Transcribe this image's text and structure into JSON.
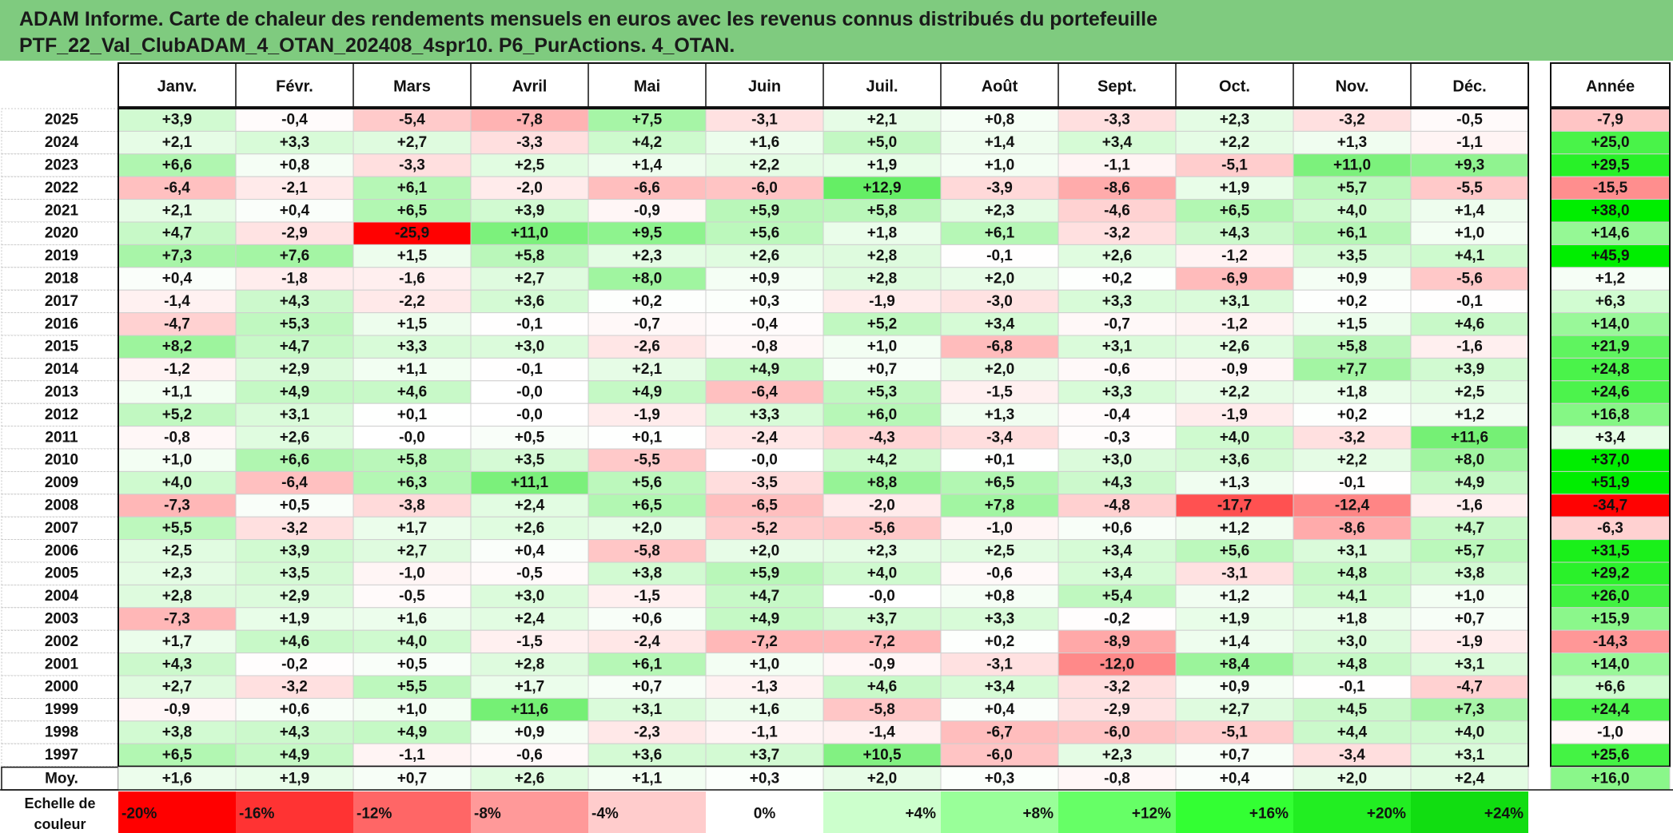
{
  "title_line1": "ADAM Informe. Carte de chaleur des rendements mensuels en euros avec les revenus connus distribués du portefeuille",
  "title_line2": "PTF_22_Val_ClubADAM_4_OTAN_202408_4spr10. P6_PurActions. 4_OTAN.",
  "colors": {
    "title_bg": "#7fcb7f",
    "negative_max": "#ff0000",
    "positive_max": "#00ee00",
    "neutral": "#ffffff"
  },
  "chart_data": {
    "type": "heatmap",
    "title": "ADAM Informe. Carte de chaleur des rendements mensuels en euros avec les revenus connus distribués du portefeuille PTF_22_Val_ClubADAM_4_OTAN_202408_4spr10. P6_PurActions. 4_OTAN.",
    "columns": [
      "Janv.",
      "Févr.",
      "Mars",
      "Avril",
      "Mai",
      "Juin",
      "Juil.",
      "Août",
      "Sept.",
      "Oct.",
      "Nov.",
      "Déc."
    ],
    "year_column_label": "Année",
    "rows": [
      {
        "year": "2025",
        "months": [
          "+3,9",
          "-0,4",
          "-5,4",
          "-7,8",
          "+7,5",
          "-3,1",
          "+2,1",
          "+0,8",
          "-3,3",
          "+2,3",
          "-3,2",
          "-0,5"
        ],
        "annual": "-7,9"
      },
      {
        "year": "2024",
        "months": [
          "+2,1",
          "+3,3",
          "+2,7",
          "-3,3",
          "+4,2",
          "+1,6",
          "+5,0",
          "+1,4",
          "+3,4",
          "+2,2",
          "+1,3",
          "-1,1"
        ],
        "annual": "+25,0"
      },
      {
        "year": "2023",
        "months": [
          "+6,6",
          "+0,8",
          "-3,3",
          "+2,5",
          "+1,4",
          "+2,2",
          "+1,9",
          "+1,0",
          "-1,1",
          "-5,1",
          "+11,0",
          "+9,3"
        ],
        "annual": "+29,5"
      },
      {
        "year": "2022",
        "months": [
          "-6,4",
          "-2,1",
          "+6,1",
          "-2,0",
          "-6,6",
          "-6,0",
          "+12,9",
          "-3,9",
          "-8,6",
          "+1,9",
          "+5,7",
          "-5,5"
        ],
        "annual": "-15,5"
      },
      {
        "year": "2021",
        "months": [
          "+2,1",
          "+0,4",
          "+6,5",
          "+3,9",
          "-0,9",
          "+5,9",
          "+5,8",
          "+2,3",
          "-4,6",
          "+6,5",
          "+4,0",
          "+1,4"
        ],
        "annual": "+38,0"
      },
      {
        "year": "2020",
        "months": [
          "+4,7",
          "-2,9",
          "-25,9",
          "+11,0",
          "+9,5",
          "+5,6",
          "+1,8",
          "+6,1",
          "-3,2",
          "+4,3",
          "+6,1",
          "+1,0"
        ],
        "annual": "+14,6"
      },
      {
        "year": "2019",
        "months": [
          "+7,3",
          "+7,6",
          "+1,5",
          "+5,8",
          "+2,3",
          "+2,6",
          "+2,8",
          "-0,1",
          "+2,6",
          "-1,2",
          "+3,5",
          "+4,1"
        ],
        "annual": "+45,9"
      },
      {
        "year": "2018",
        "months": [
          "+0,4",
          "-1,8",
          "-1,6",
          "+2,7",
          "+8,0",
          "+0,9",
          "+2,8",
          "+2,0",
          "+0,2",
          "-6,9",
          "+0,9",
          "-5,6"
        ],
        "annual": "+1,2"
      },
      {
        "year": "2017",
        "months": [
          "-1,4",
          "+4,3",
          "-2,2",
          "+3,6",
          "+0,2",
          "+0,3",
          "-1,9",
          "-3,0",
          "+3,3",
          "+3,1",
          "+0,2",
          "-0,1"
        ],
        "annual": "+6,3"
      },
      {
        "year": "2016",
        "months": [
          "-4,7",
          "+5,3",
          "+1,5",
          "-0,1",
          "-0,7",
          "-0,4",
          "+5,2",
          "+3,4",
          "-0,7",
          "-1,2",
          "+1,5",
          "+4,6"
        ],
        "annual": "+14,0"
      },
      {
        "year": "2015",
        "months": [
          "+8,2",
          "+4,7",
          "+3,3",
          "+3,0",
          "-2,6",
          "-0,8",
          "+1,0",
          "-6,8",
          "+3,1",
          "+2,6",
          "+5,8",
          "-1,6"
        ],
        "annual": "+21,9"
      },
      {
        "year": "2014",
        "months": [
          "-1,2",
          "+2,9",
          "+1,1",
          "-0,1",
          "+2,1",
          "+4,9",
          "+0,7",
          "+2,0",
          "-0,6",
          "-0,9",
          "+7,7",
          "+3,9"
        ],
        "annual": "+24,8"
      },
      {
        "year": "2013",
        "months": [
          "+1,1",
          "+4,9",
          "+4,6",
          "-0,0",
          "+4,9",
          "-6,4",
          "+5,3",
          "-1,5",
          "+3,3",
          "+2,2",
          "+1,8",
          "+2,5"
        ],
        "annual": "+24,6"
      },
      {
        "year": "2012",
        "months": [
          "+5,2",
          "+3,1",
          "+0,1",
          "-0,0",
          "-1,9",
          "+3,3",
          "+6,0",
          "+1,3",
          "-0,4",
          "-1,9",
          "+0,2",
          "+1,2"
        ],
        "annual": "+16,8"
      },
      {
        "year": "2011",
        "months": [
          "-0,8",
          "+2,6",
          "-0,0",
          "+0,5",
          "+0,1",
          "-2,4",
          "-4,3",
          "-3,4",
          "-0,3",
          "+4,0",
          "-3,2",
          "+11,6"
        ],
        "annual": "+3,4"
      },
      {
        "year": "2010",
        "months": [
          "+1,0",
          "+6,6",
          "+5,8",
          "+3,5",
          "-5,5",
          "-0,0",
          "+4,2",
          "+0,1",
          "+3,0",
          "+3,6",
          "+2,2",
          "+8,0"
        ],
        "annual": "+37,0"
      },
      {
        "year": "2009",
        "months": [
          "+4,0",
          "-6,4",
          "+6,3",
          "+11,1",
          "+5,6",
          "-3,5",
          "+8,8",
          "+6,5",
          "+4,3",
          "+1,3",
          "-0,1",
          "+4,9"
        ],
        "annual": "+51,9"
      },
      {
        "year": "2008",
        "months": [
          "-7,3",
          "+0,5",
          "-3,8",
          "+2,4",
          "+6,5",
          "-6,5",
          "-2,0",
          "+7,8",
          "-4,8",
          "-17,7",
          "-12,4",
          "-1,6"
        ],
        "annual": "-34,7"
      },
      {
        "year": "2007",
        "months": [
          "+5,5",
          "-3,2",
          "+1,7",
          "+2,6",
          "+2,0",
          "-5,2",
          "-5,6",
          "-1,0",
          "+0,6",
          "+1,2",
          "-8,6",
          "+4,7"
        ],
        "annual": "-6,3"
      },
      {
        "year": "2006",
        "months": [
          "+2,5",
          "+3,9",
          "+2,7",
          "+0,4",
          "-5,8",
          "+2,0",
          "+2,3",
          "+2,5",
          "+3,4",
          "+5,6",
          "+3,1",
          "+5,7"
        ],
        "annual": "+31,5"
      },
      {
        "year": "2005",
        "months": [
          "+2,3",
          "+3,5",
          "-1,0",
          "-0,5",
          "+3,8",
          "+5,9",
          "+4,0",
          "-0,6",
          "+3,4",
          "-3,1",
          "+4,8",
          "+3,8"
        ],
        "annual": "+29,2"
      },
      {
        "year": "2004",
        "months": [
          "+2,8",
          "+2,9",
          "-0,5",
          "+3,0",
          "-1,5",
          "+4,7",
          "-0,0",
          "+0,8",
          "+5,4",
          "+1,2",
          "+4,1",
          "+1,0"
        ],
        "annual": "+26,0"
      },
      {
        "year": "2003",
        "months": [
          "-7,3",
          "+1,9",
          "+1,6",
          "+2,4",
          "+0,6",
          "+4,9",
          "+3,7",
          "+3,3",
          "-0,2",
          "+1,9",
          "+1,8",
          "+0,7"
        ],
        "annual": "+15,9"
      },
      {
        "year": "2002",
        "months": [
          "+1,7",
          "+4,6",
          "+4,0",
          "-1,5",
          "-2,4",
          "-7,2",
          "-7,2",
          "+0,2",
          "-8,9",
          "+1,4",
          "+3,0",
          "-1,9"
        ],
        "annual": "-14,3"
      },
      {
        "year": "2001",
        "months": [
          "+4,3",
          "-0,2",
          "+0,5",
          "+2,8",
          "+6,1",
          "+1,0",
          "-0,9",
          "-3,1",
          "-12,0",
          "+8,4",
          "+4,8",
          "+3,1"
        ],
        "annual": "+14,0"
      },
      {
        "year": "2000",
        "months": [
          "+2,7",
          "-3,2",
          "+5,5",
          "+1,7",
          "+0,7",
          "-1,3",
          "+4,6",
          "+3,4",
          "-3,2",
          "+0,9",
          "-0,1",
          "-4,7"
        ],
        "annual": "+6,6"
      },
      {
        "year": "1999",
        "months": [
          "-0,9",
          "+0,6",
          "+1,0",
          "+11,6",
          "+3,1",
          "+1,6",
          "-5,8",
          "+0,4",
          "-2,9",
          "+2,7",
          "+4,5",
          "+7,3"
        ],
        "annual": "+24,4"
      },
      {
        "year": "1998",
        "months": [
          "+3,8",
          "+4,3",
          "+4,9",
          "+0,9",
          "-2,3",
          "-1,1",
          "-1,4",
          "-6,7",
          "-6,0",
          "-5,1",
          "+4,4",
          "+4,0"
        ],
        "annual": "-1,0"
      },
      {
        "year": "1997",
        "months": [
          "+6,5",
          "+4,9",
          "-1,1",
          "-0,6",
          "+3,6",
          "+3,7",
          "+10,5",
          "-6,0",
          "+2,3",
          "+0,7",
          "-3,4",
          "+3,1"
        ],
        "annual": "+25,6"
      }
    ],
    "average_row": {
      "label": "Moy.",
      "months": [
        "+1,6",
        "+1,9",
        "+0,7",
        "+2,6",
        "+1,1",
        "+0,3",
        "+2,0",
        "+0,3",
        "-0,8",
        "+0,4",
        "+2,0",
        "+2,4"
      ],
      "annual": "+16,0"
    },
    "legend": {
      "label_line1": "Echelle de",
      "label_line2": "couleur",
      "items": [
        {
          "text": "-20%",
          "value": -20,
          "color": "#ff0000"
        },
        {
          "text": "-16%",
          "value": -16,
          "color": "#ff3333"
        },
        {
          "text": "-12%",
          "value": -12,
          "color": "#ff6666"
        },
        {
          "text": "-8%",
          "value": -8,
          "color": "#ff9999"
        },
        {
          "text": "-4%",
          "value": -4,
          "color": "#ffcccc"
        },
        {
          "text": "0%",
          "value": 0,
          "color": "#ffffff"
        },
        {
          "text": "+4%",
          "value": 4,
          "color": "#ccffcc"
        },
        {
          "text": "+8%",
          "value": 8,
          "color": "#99ff99"
        },
        {
          "text": "+12%",
          "value": 12,
          "color": "#66ff66"
        },
        {
          "text": "+16%",
          "value": 16,
          "color": "#33ff33"
        },
        {
          "text": "+20%",
          "value": 20,
          "color": "#22ee22"
        },
        {
          "text": "+24%",
          "value": 24,
          "color": "#11dd11"
        }
      ]
    }
  }
}
